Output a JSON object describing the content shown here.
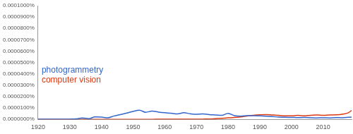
{
  "chart_data": {
    "type": "line",
    "x": [
      1920,
      1922,
      1924,
      1926,
      1928,
      1930,
      1932,
      1934,
      1936,
      1938,
      1940,
      1942,
      1944,
      1946,
      1948,
      1950,
      1952,
      1954,
      1956,
      1958,
      1960,
      1962,
      1964,
      1966,
      1968,
      1970,
      1972,
      1974,
      1976,
      1978,
      1980,
      1982,
      1984,
      1986,
      1988,
      1990,
      1992,
      1994,
      1996,
      1998,
      2000,
      2002,
      2004,
      2006,
      2008,
      2010,
      2012,
      2014,
      2016,
      2018,
      2019
    ],
    "series": [
      {
        "name": "photogrammetry",
        "color": "#3366cc",
        "values": [
          1e-07,
          1e-07,
          2e-07,
          2e-07,
          1e-07,
          2e-07,
          4e-07,
          1.2e-06,
          6e-07,
          2.2e-06,
          2e-06,
          1.4e-06,
          3e-06,
          4.2e-06,
          5.5e-06,
          7e-06,
          8e-06,
          6.2e-06,
          7.2e-06,
          6.4e-06,
          5.8e-06,
          5.4e-06,
          4.8e-06,
          5.8e-06,
          4.9e-06,
          4.4e-06,
          4.7e-06,
          4.2e-06,
          3.9e-06,
          3.5e-06,
          5.3e-06,
          3.2e-06,
          2.8e-06,
          3.2e-06,
          3.3e-06,
          3e-06,
          2.7e-06,
          2.4e-06,
          2e-06,
          1.8e-06,
          1.7e-06,
          1.5e-06,
          1.6e-06,
          1.4e-06,
          1.2e-06,
          1.4e-06,
          1.2e-06,
          1.5e-06,
          1.4e-06,
          1.8e-06,
          2e-06
        ]
      },
      {
        "name": "computer vision",
        "color": "#dc3912",
        "values": [
          0,
          0,
          0,
          0,
          0,
          0,
          0,
          0,
          0,
          0,
          0,
          0,
          0,
          0,
          0,
          0,
          0,
          0,
          0,
          1e-07,
          2e-07,
          1e-07,
          1e-07,
          1e-07,
          1e-07,
          1e-07,
          2e-07,
          3e-07,
          6e-07,
          9e-07,
          1.3e-06,
          1.6e-06,
          2.1e-06,
          2.9e-06,
          3.6e-06,
          4e-06,
          4.2e-06,
          3.8e-06,
          3.5e-06,
          3e-06,
          3e-06,
          3.5e-06,
          3e-06,
          3.6e-06,
          3.9e-06,
          3.5e-06,
          3.8e-06,
          4e-06,
          4.5e-06,
          5.8e-06,
          7.8e-06
        ]
      }
    ],
    "xlim": [
      1920,
      2019
    ],
    "xticks": [
      1920,
      1930,
      1940,
      1950,
      1960,
      1970,
      1980,
      1990,
      2000,
      2010
    ],
    "ylim": [
      0,
      0.0001
    ],
    "yticks": [
      {
        "value": 0,
        "label": "0.0000000%"
      },
      {
        "value": 1e-05,
        "label": "0.0000100%"
      },
      {
        "value": 2e-05,
        "label": "0.0000200%"
      },
      {
        "value": 3e-05,
        "label": "0.0000300%"
      },
      {
        "value": 4e-05,
        "label": "0.0000400%"
      },
      {
        "value": 5e-05,
        "label": "0.0000500%"
      },
      {
        "value": 6e-05,
        "label": "0.0000600%"
      },
      {
        "value": 7e-05,
        "label": "0.0000700%"
      },
      {
        "value": 8e-05,
        "label": "0.0000800%"
      },
      {
        "value": 9e-05,
        "label": "0.0000900%"
      },
      {
        "value": 0.0001,
        "label": "0.0001000%"
      }
    ],
    "grid": false,
    "legend": "left"
  }
}
